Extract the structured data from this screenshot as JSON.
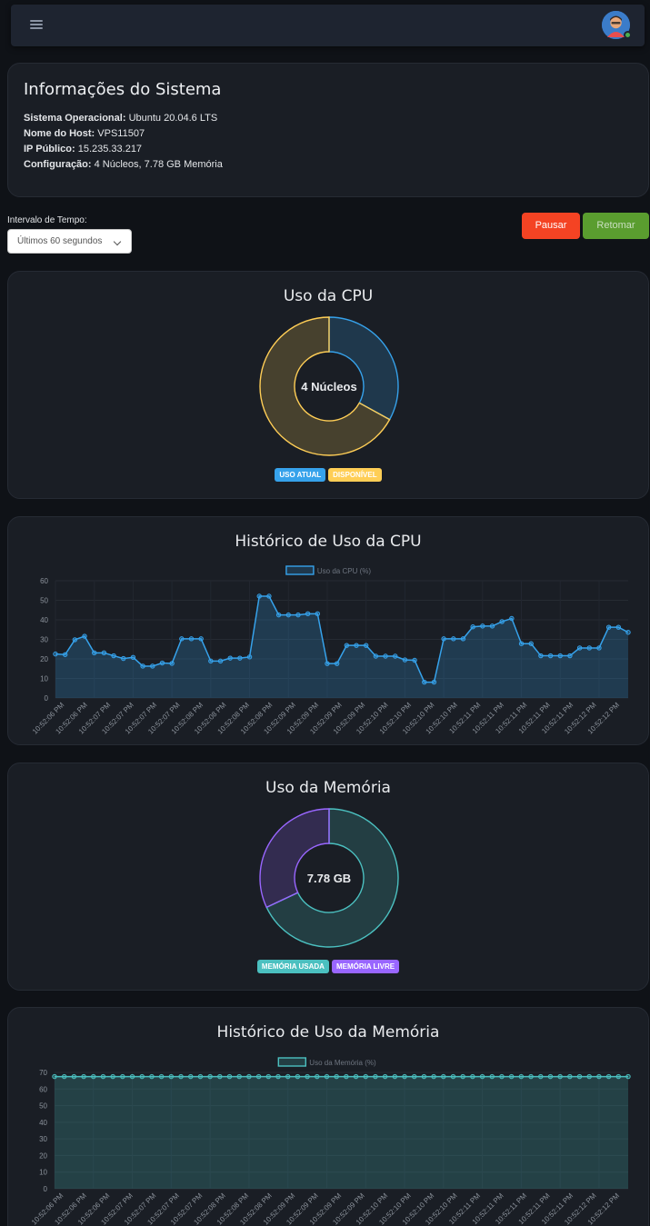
{
  "header": {
    "menu_icon": "hamburger-icon",
    "avatar_icon": "user-avatar-icon"
  },
  "info": {
    "title": "Informações do Sistema",
    "rows": [
      {
        "label": "Sistema Operacional:",
        "value": "Ubuntu 20.04.6 LTS"
      },
      {
        "label": "Nome do Host:",
        "value": "VPS11507"
      },
      {
        "label": "IP Público:",
        "value": "15.235.33.217"
      },
      {
        "label": "Configuração:",
        "value": "4 Núcleos, 7.78 GB Memória"
      }
    ]
  },
  "controls": {
    "interval_label": "Intervalo de Tempo:",
    "interval_value": "Últimos 60 segundos",
    "pause_label": "Pausar",
    "resume_label": "Retomar"
  },
  "colors": {
    "cpu": "#36a2eb",
    "cpu_free": "#ffce56",
    "mem_used": "#4bc0c0",
    "mem_free": "#9966ff",
    "pause": "#f44323",
    "resume": "#5a9d2f"
  },
  "cpu_doughnut": {
    "title": "Uso da CPU",
    "center_text": "4 Núcleos",
    "legend_used": "USO ATUAL",
    "legend_free": "DISPONÍVEL"
  },
  "cpu_history": {
    "title": "Histórico de Uso da CPU"
  },
  "mem_doughnut": {
    "title": "Uso da Memória",
    "center_text": "7.78 GB",
    "legend_used": "MEMÓRIA USADA",
    "legend_free": "MEMÓRIA LIVRE"
  },
  "mem_history": {
    "title": "Histórico de Uso da Memória"
  },
  "chart_data": [
    {
      "type": "pie",
      "variant": "doughnut",
      "categories": [
        "USO ATUAL",
        "DISPONÍVEL"
      ],
      "values": [
        33,
        67
      ]
    },
    {
      "type": "area",
      "legend": "Uso da CPU (%)",
      "ylim": [
        0,
        60
      ],
      "yticks": [
        0,
        10,
        20,
        30,
        40,
        50,
        60
      ],
      "xtick_labels": [
        "10:52:06 PM",
        "10:52:06 PM",
        "10:52:07 PM",
        "10:52:07 PM",
        "10:52:07 PM",
        "10:52:07 PM",
        "10:52:08 PM",
        "10:52:08 PM",
        "10:52:08 PM",
        "10:52:08 PM",
        "10:52:09 PM",
        "10:52:09 PM",
        "10:52:09 PM",
        "10:52:09 PM",
        "10:52:10 PM",
        "10:52:10 PM",
        "10:52:10 PM",
        "10:52:10 PM",
        "10:52:11 PM",
        "10:52:11 PM",
        "10:52:11 PM",
        "10:52:11 PM",
        "10:52:11 PM",
        "10:52:12 PM",
        "10:52:12 PM"
      ],
      "values": [
        22.5,
        22.2,
        29.8,
        31.6,
        23.1,
        23.1,
        21.6,
        20.2,
        20.8,
        16.3,
        16.3,
        17.9,
        17.7,
        30.3,
        30.3,
        30.3,
        18.9,
        18.9,
        20.4,
        20.4,
        21.0,
        52.1,
        52.1,
        42.5,
        42.5,
        42.5,
        43.1,
        43.1,
        17.6,
        17.6,
        26.9,
        26.9,
        26.9,
        21.4,
        21.4,
        21.4,
        19.5,
        19.3,
        8.1,
        8.1,
        30.3,
        30.3,
        30.3,
        36.4,
        36.8,
        36.8,
        39.1,
        40.7,
        27.8,
        27.8,
        21.6,
        21.6,
        21.6,
        21.6,
        25.6,
        25.6,
        25.6,
        36.2,
        36.2,
        33.6
      ]
    },
    {
      "type": "pie",
      "variant": "doughnut",
      "categories": [
        "MEMÓRIA USADA",
        "MEMÓRIA LIVRE"
      ],
      "values": [
        68,
        32
      ]
    },
    {
      "type": "area",
      "legend": "Uso da Memória (%)",
      "ylim": [
        0,
        70
      ],
      "yticks": [
        0,
        10,
        20,
        30,
        40,
        50,
        60,
        70
      ],
      "xtick_labels": [
        "10:52:06 PM",
        "10:52:06 PM",
        "10:52:06 PM",
        "10:52:07 PM",
        "10:52:07 PM",
        "10:52:07 PM",
        "10:52:07 PM",
        "10:52:08 PM",
        "10:52:08 PM",
        "10:52:08 PM",
        "10:52:09 PM",
        "10:52:09 PM",
        "10:52:09 PM",
        "10:52:09 PM",
        "10:52:10 PM",
        "10:52:10 PM",
        "10:52:10 PM",
        "10:52:10 PM",
        "10:52:11 PM",
        "10:52:11 PM",
        "10:52:11 PM",
        "10:52:11 PM",
        "10:52:11 PM",
        "10:52:12 PM",
        "10:52:12 PM"
      ],
      "constant_value": 67.5,
      "point_count": 60
    }
  ]
}
